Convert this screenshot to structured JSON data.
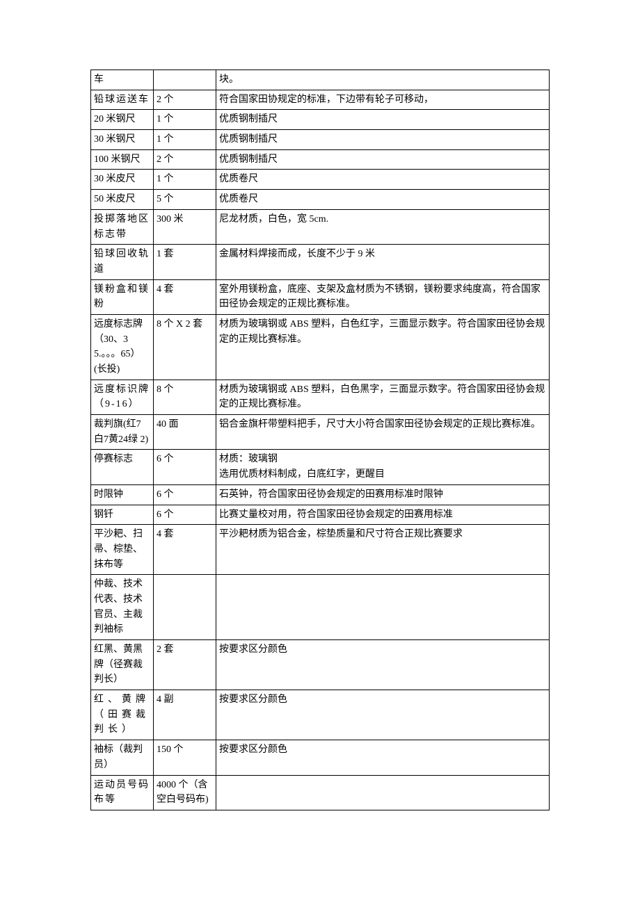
{
  "table": {
    "columns_css": [
      "c1",
      "c2",
      "c3"
    ],
    "rows": [
      {
        "c1": "车",
        "c2": "",
        "c3": "块。"
      },
      {
        "c1": "铅球运送车",
        "c1_class": "letterspace",
        "c2": "2 个",
        "c3": "符合国家田协规定的标准，下边带有轮子可移动，"
      },
      {
        "c1": "20 米钢尺",
        "c2": "1 个",
        "c3": "优质钢制插尺"
      },
      {
        "c1": "30 米钢尺",
        "c2": "1 个",
        "c3": "优质钢制插尺"
      },
      {
        "c1": "100 米钢尺",
        "c2": "2 个",
        "c3": "优质钢制插尺"
      },
      {
        "c1": "30 米皮尺",
        "c2": "1 个",
        "c3": "优质卷尺"
      },
      {
        "c1": "50 米皮尺",
        "c2": "5 个",
        "c3": "优质卷尺"
      },
      {
        "c1": "投掷落地区标志带",
        "c1_class": "letterspace",
        "c2": "300 米",
        "c3": "尼龙材质，白色，宽 5cm."
      },
      {
        "c1": "铅球回收轨道",
        "c1_class": "letterspace",
        "c2": "1 套",
        "c3": "金属材料焊接而成，长度不少于 9 米"
      },
      {
        "c1": "镁粉盒和镁粉",
        "c1_class": "letterspace",
        "c2": "4 套",
        "c3": "室外用镁粉盒，底座、支架及盒材质为不锈钢，镁粉要求纯度高，符合国家田径协会规定的正规比赛标准。"
      },
      {
        "c1": "远度标志牌（30、35.。。。65）(长投)",
        "c2": "8 个 X 2 套",
        "c3": "材质为玻璃钢或 ABS 塑料，白色红字，三面显示数字。符合国家田径协会规定的正规比赛标准。"
      },
      {
        "c1": "远度标识牌（9-16）",
        "c1_class": "letterspace",
        "c2": "8 个",
        "c3": "材质为玻璃钢或 ABS 塑料，白色黑字，三面显示数字。符合国家田径协会规定的正规比赛标准。"
      },
      {
        "c1": "裁判旗(红7白7黄24绿 2)",
        "c2": "40 面",
        "c3": "铝合金旗杆带塑料把手，尺寸大小符合国家田径协会规定的正规比赛标准。"
      },
      {
        "c1": "停赛标志",
        "c2": "6 个",
        "c3": "材质：玻璃钢\n选用优质材料制成，白底红字，更醒目"
      },
      {
        "c1": "时限钟",
        "c2": "6 个",
        "c3": "石英钟，符合国家田径协会规定的田赛用标准时限钟"
      },
      {
        "c1": "钢钎",
        "c2": "6 个",
        "c3": "比赛丈量校对用，符合国家田径协会规定的田赛用标准"
      },
      {
        "c1": "平沙耙、扫帚、棕垫、抹布等",
        "c2": "4 套",
        "c3": "平沙耙材质为铝合金，棕垫质量和尺寸符合正规比赛要求"
      },
      {
        "c1": "仲裁、技术代表、技术官员、主裁判袖标",
        "c2": "",
        "c3": ""
      },
      {
        "c1": "红黑、黄黑牌（径赛裁判长）",
        "c2": "2 套",
        "c3": "按要求区分颜色"
      },
      {
        "c1": "红、黄牌（田赛裁判长）",
        "c1_class": "letterspace-wide",
        "c2": "4 副",
        "c3": "按要求区分颜色"
      },
      {
        "c1": "袖标（裁判员）",
        "c2": "150 个",
        "c3": "按要求区分颜色"
      },
      {
        "c1": "运动员号码布等",
        "c1_class": "letterspace",
        "c2": "4000 个（含空白号码布)",
        "c3": ""
      }
    ]
  }
}
